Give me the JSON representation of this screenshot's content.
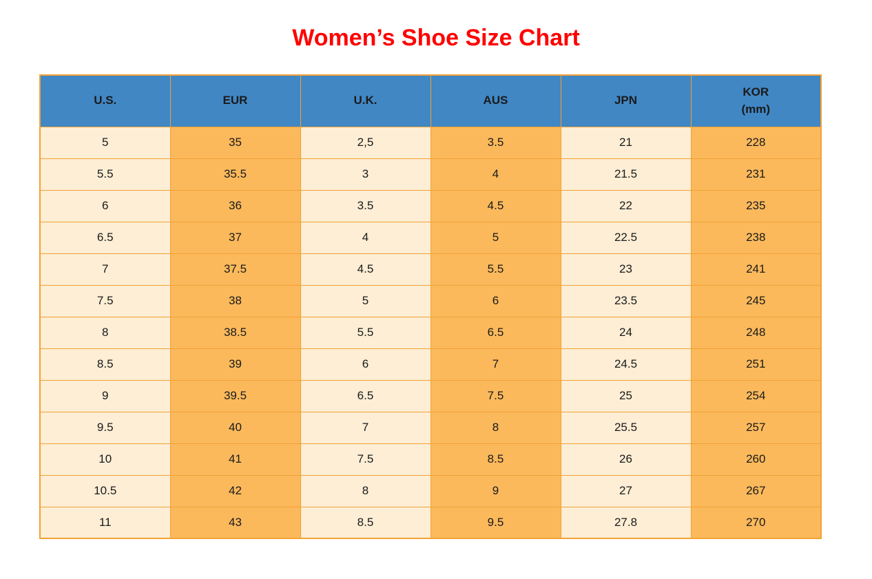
{
  "title": "Women’s Shoe Size Chart",
  "colors": {
    "title_red": "#ff0000",
    "header_blue": "#4187c4",
    "cell_cream": "#fdeed5",
    "cell_orange": "#fbb95c",
    "grid_border": "#f2a233",
    "text": "#1a1a1a"
  },
  "chart_data": {
    "type": "table",
    "title": "Women’s Shoe Size Chart",
    "columns": [
      "U.S.",
      "EUR",
      "U.K.",
      "AUS",
      "JPN",
      "KOR\n(mm)"
    ],
    "column_styles": [
      "light",
      "dark",
      "light",
      "dark",
      "light",
      "dark"
    ],
    "rows": [
      [
        "5",
        "35",
        "2,5",
        "3.5",
        "21",
        "228"
      ],
      [
        "5.5",
        "35.5",
        "3",
        "4",
        "21.5",
        "231"
      ],
      [
        "6",
        "36",
        "3.5",
        "4.5",
        "22",
        "235"
      ],
      [
        "6.5",
        "37",
        "4",
        "5",
        "22.5",
        "238"
      ],
      [
        "7",
        "37.5",
        "4.5",
        "5.5",
        "23",
        "241"
      ],
      [
        "7.5",
        "38",
        "5",
        "6",
        "23.5",
        "245"
      ],
      [
        "8",
        "38.5",
        "5.5",
        "6.5",
        "24",
        "248"
      ],
      [
        "8.5",
        "39",
        "6",
        "7",
        "24.5",
        "251"
      ],
      [
        "9",
        "39.5",
        "6.5",
        "7.5",
        "25",
        "254"
      ],
      [
        "9.5",
        "40",
        "7",
        "8",
        "25.5",
        "257"
      ],
      [
        "10",
        "41",
        "7.5",
        "8.5",
        "26",
        "260"
      ],
      [
        "10.5",
        "42",
        "8",
        "9",
        "27",
        "267"
      ],
      [
        "11",
        "43",
        "8.5",
        "9.5",
        "27.8",
        "270"
      ]
    ]
  }
}
